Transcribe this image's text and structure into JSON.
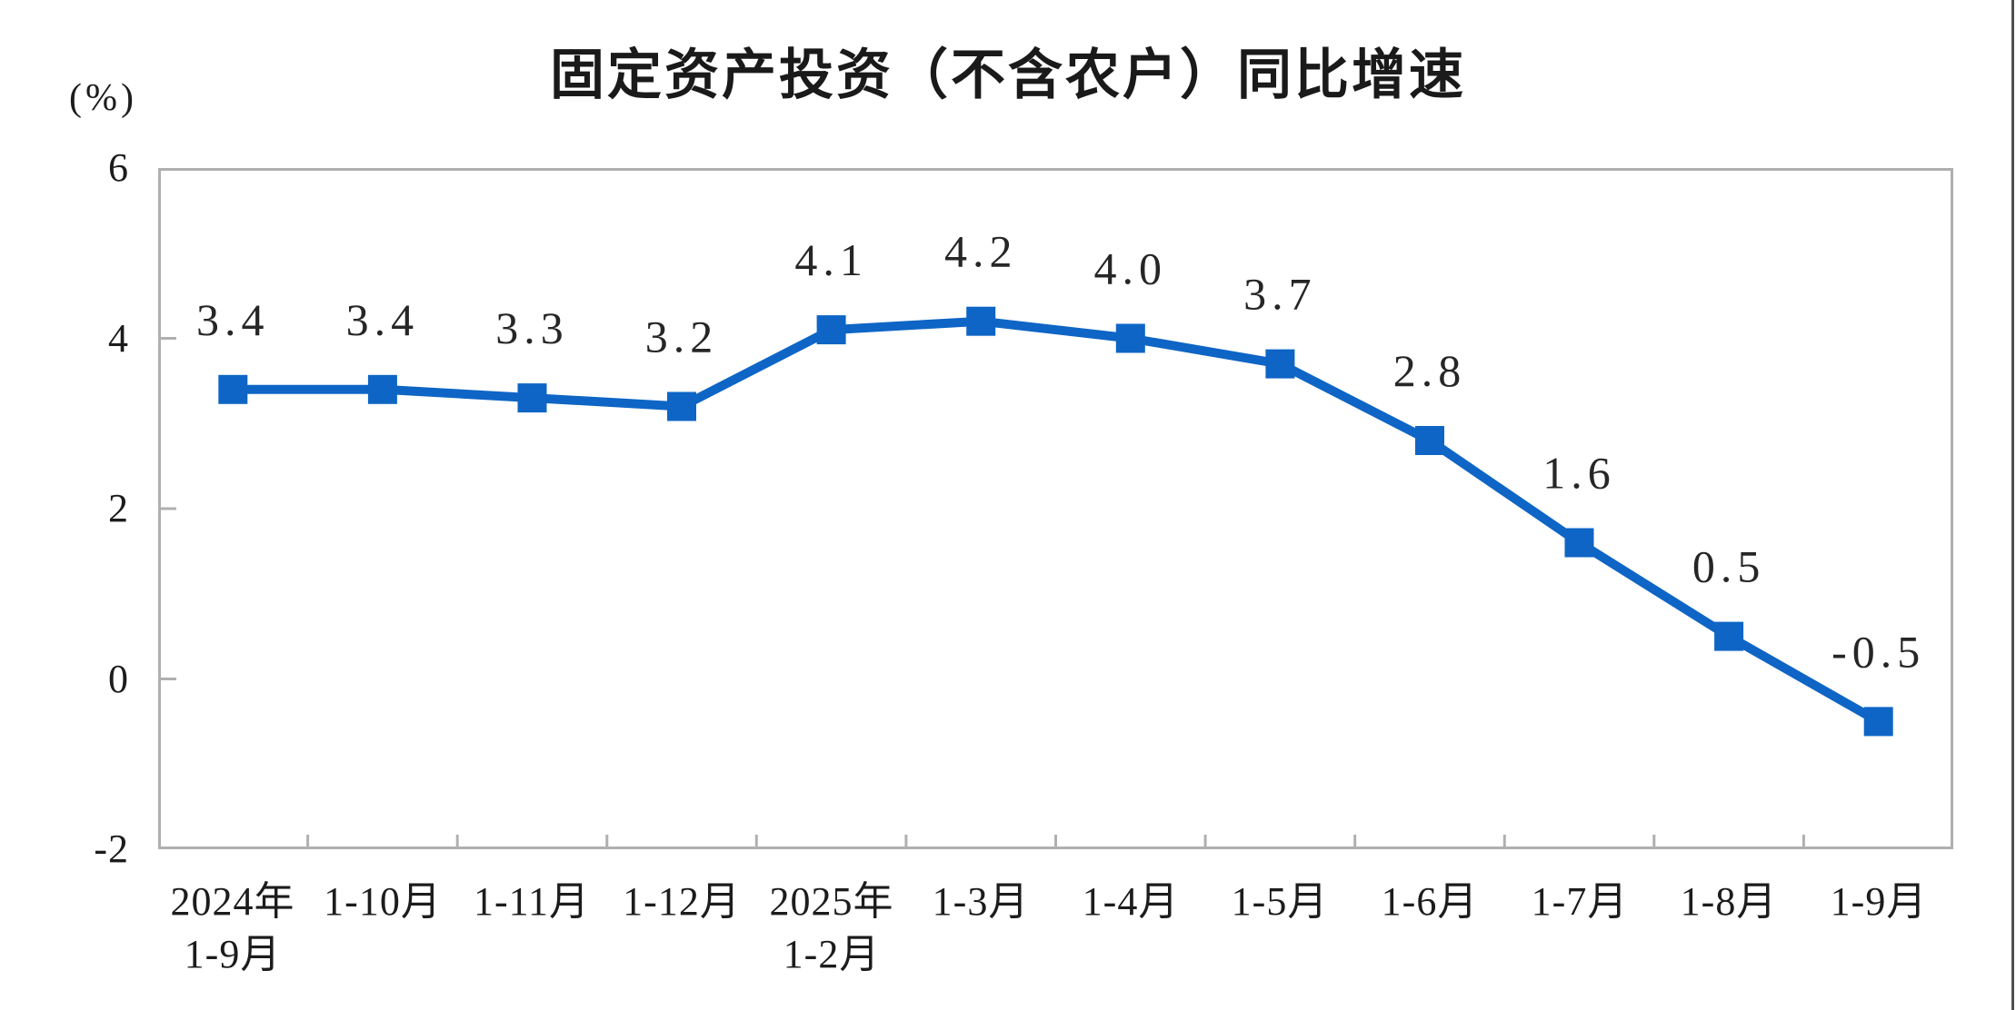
{
  "window": {
    "background": "#ffffff",
    "right_edge_color": "#4f4f4f"
  },
  "chart": {
    "title": "固定资产投资（不含农户）同比增速",
    "unit_label": "(%)"
  },
  "chart_data": {
    "type": "line",
    "title": "固定资产投资（不含农户）同比增速",
    "ylabel": "(%)",
    "categories": [
      "2024年\n1-9月",
      "1-10月",
      "1-11月",
      "1-12月",
      "2025年\n1-2月",
      "1-3月",
      "1-4月",
      "1-5月",
      "1-6月",
      "1-7月",
      "1-8月",
      "1-9月"
    ],
    "values": [
      3.4,
      3.4,
      3.3,
      3.2,
      4.1,
      4.2,
      4.0,
      3.7,
      2.8,
      1.6,
      0.5,
      -0.5
    ],
    "data_labels": [
      "3.4",
      "3.4",
      "3.3",
      "3.2",
      "4.1",
      "4.2",
      "4.0",
      "3.7",
      "2.8",
      "1.6",
      "0.5",
      "-0.5"
    ],
    "ylim": [
      -2,
      6
    ],
    "yticks": [
      6,
      4,
      2,
      0,
      -2
    ],
    "grid": false,
    "legend_position": "none",
    "line_color": "#0e65c5",
    "marker_shape": "square",
    "axis_color": "#afafaf",
    "tick_color": "#b0b0b0",
    "label_color": "#262626"
  }
}
